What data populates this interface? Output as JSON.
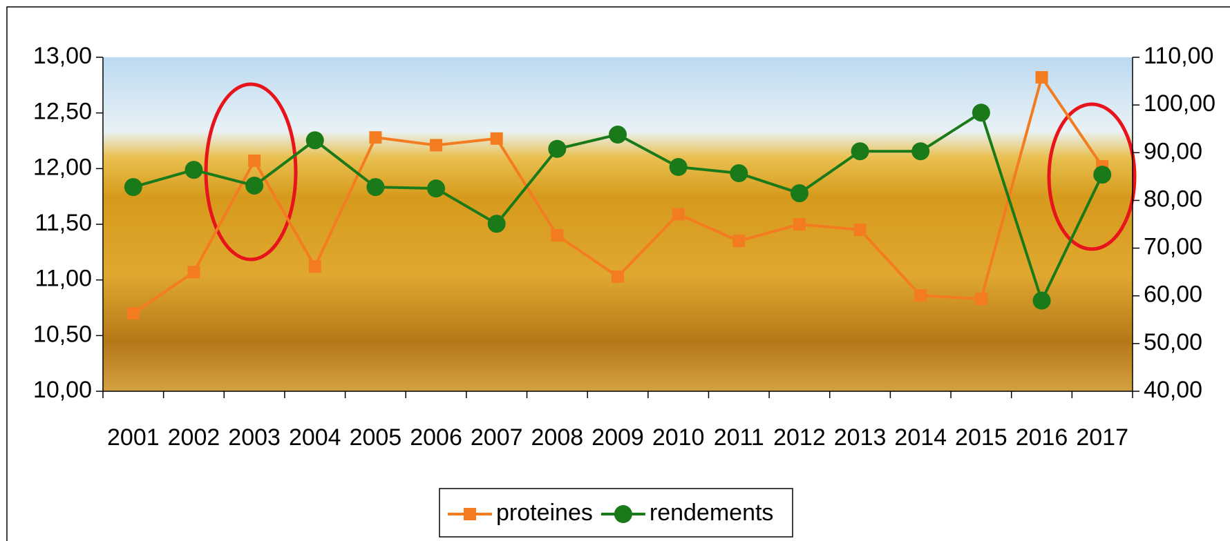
{
  "chart_data": {
    "type": "line",
    "categories": [
      "2001",
      "2002",
      "2003",
      "2004",
      "2005",
      "2006",
      "2007",
      "2008",
      "2009",
      "2010",
      "2011",
      "2012",
      "2013",
      "2014",
      "2015",
      "2016",
      "2017"
    ],
    "series": [
      {
        "name": "proteines",
        "color": "#f47c20",
        "marker": "square",
        "values": [
          10.7,
          11.07,
          12.07,
          11.12,
          12.28,
          12.21,
          12.27,
          11.4,
          11.03,
          11.59,
          11.35,
          11.5,
          11.45,
          10.86,
          10.83,
          12.82,
          12.02
        ]
      },
      {
        "name": "rendements",
        "color": "#1a7a1a",
        "marker": "circle",
        "axis": "y2",
        "values": [
          82.8,
          86.4,
          83.1,
          92.6,
          82.8,
          82.5,
          75.1,
          90.8,
          93.8,
          87.0,
          85.7,
          81.5,
          90.3,
          90.3,
          98.4,
          59.0,
          85.4
        ]
      }
    ],
    "ylim": [
      10,
      13
    ],
    "yticks": [
      {
        "value": 10,
        "label": "10,00"
      },
      {
        "value": 10.5,
        "label": "10,50"
      },
      {
        "value": 11,
        "label": "11,00"
      },
      {
        "value": 11.5,
        "label": "11,50"
      },
      {
        "value": 12,
        "label": "12,00"
      },
      {
        "value": 12.5,
        "label": "12,50"
      },
      {
        "value": 13,
        "label": "13,00"
      }
    ],
    "y2lim": [
      40,
      110
    ],
    "y2ticks": [
      {
        "value": 40,
        "label": "40,00"
      },
      {
        "value": 50,
        "label": "50,00"
      },
      {
        "value": 60,
        "label": "60,00"
      },
      {
        "value": 70,
        "label": "70,00"
      },
      {
        "value": 80,
        "label": "80,00"
      },
      {
        "value": 90,
        "label": "90,00"
      },
      {
        "value": 100,
        "label": "100,00"
      },
      {
        "value": 110,
        "label": "110,00"
      }
    ],
    "grid": false,
    "legend": "bottom"
  }
}
